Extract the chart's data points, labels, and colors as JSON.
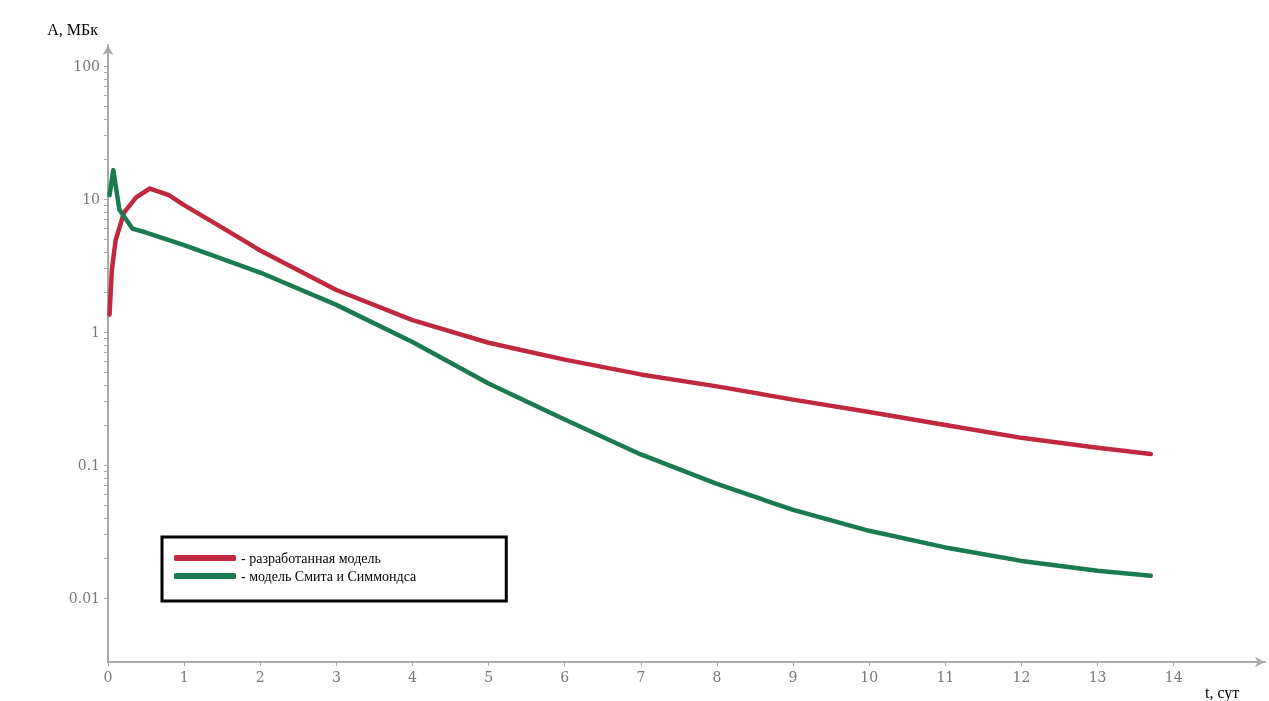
{
  "chart_data": {
    "type": "line",
    "xlabel": "t, сут",
    "ylabel": "A, МБк",
    "log": "y",
    "grid": false,
    "legend": "bottom left",
    "marker": "none",
    "line_style": "solid",
    "xlim": [
      0,
      15.2
    ],
    "xticks": [
      0,
      1,
      2,
      3,
      4,
      5,
      6,
      7,
      8,
      9,
      10,
      11,
      12,
      13,
      14
    ],
    "ylim": [
      0.0033,
      144
    ],
    "yticks": [
      0.01,
      {
        "value": 0.02,
        "label": null
      },
      {
        "value": 0.03,
        "label": null
      },
      {
        "value": 0.04,
        "label": null
      },
      {
        "value": 0.05,
        "label": null
      },
      {
        "value": 0.06,
        "label": null
      },
      {
        "value": 0.07,
        "label": null
      },
      {
        "value": 0.08,
        "label": null
      },
      {
        "value": 0.09,
        "label": null
      },
      0.1,
      {
        "value": 0.2,
        "label": null
      },
      {
        "value": 0.3,
        "label": null
      },
      {
        "value": 0.4,
        "label": null
      },
      {
        "value": 0.5,
        "label": null
      },
      {
        "value": 0.6,
        "label": null
      },
      {
        "value": 0.7,
        "label": null
      },
      {
        "value": 0.8,
        "label": null
      },
      {
        "value": 0.9,
        "label": null
      },
      1,
      {
        "value": 2,
        "label": null
      },
      {
        "value": 3,
        "label": null
      },
      {
        "value": 4,
        "label": null
      },
      {
        "value": 5,
        "label": null
      },
      {
        "value": 6,
        "label": null
      },
      {
        "value": 7,
        "label": null
      },
      {
        "value": 8,
        "label": null
      },
      {
        "value": 9,
        "label": null
      },
      10,
      {
        "value": 20,
        "label": null
      },
      {
        "value": 30,
        "label": null
      },
      {
        "value": 40,
        "label": null
      },
      {
        "value": 50,
        "label": null
      },
      {
        "value": 60,
        "label": null
      },
      {
        "value": 70,
        "label": null
      },
      {
        "value": 80,
        "label": null
      },
      {
        "value": 90,
        "label": null
      },
      100
    ],
    "series": [
      {
        "name": "- разработанная модель",
        "color": "#c0283f",
        "x": [
          0.02,
          0.05,
          0.1,
          0.21,
          0.37,
          0.55,
          0.8,
          1,
          1.5,
          2,
          3,
          4,
          5,
          6,
          7,
          8,
          9,
          10,
          11,
          12,
          13,
          13.7
        ],
        "values": [
          1.35,
          2.9,
          4.9,
          7.9,
          10.3,
          12,
          10.7,
          9,
          6.1,
          4.1,
          2.07,
          1.23,
          0.83,
          0.62,
          0.48,
          0.39,
          0.31,
          0.25,
          0.2,
          0.16,
          0.135,
          0.121
        ]
      },
      {
        "name": "- модель Смита и Симмондса",
        "color": "#1a7a50",
        "x": [
          0.02,
          0.07,
          0.15,
          0.32,
          0.5,
          1,
          2,
          3,
          4,
          5,
          6,
          7,
          8,
          9,
          10,
          11,
          12,
          13,
          13.7
        ],
        "values": [
          10.7,
          16.5,
          8.3,
          6,
          5.6,
          4.5,
          2.8,
          1.6,
          0.84,
          0.41,
          0.22,
          0.12,
          0.072,
          0.046,
          0.032,
          0.024,
          0.019,
          0.016,
          0.0147
        ]
      }
    ]
  }
}
